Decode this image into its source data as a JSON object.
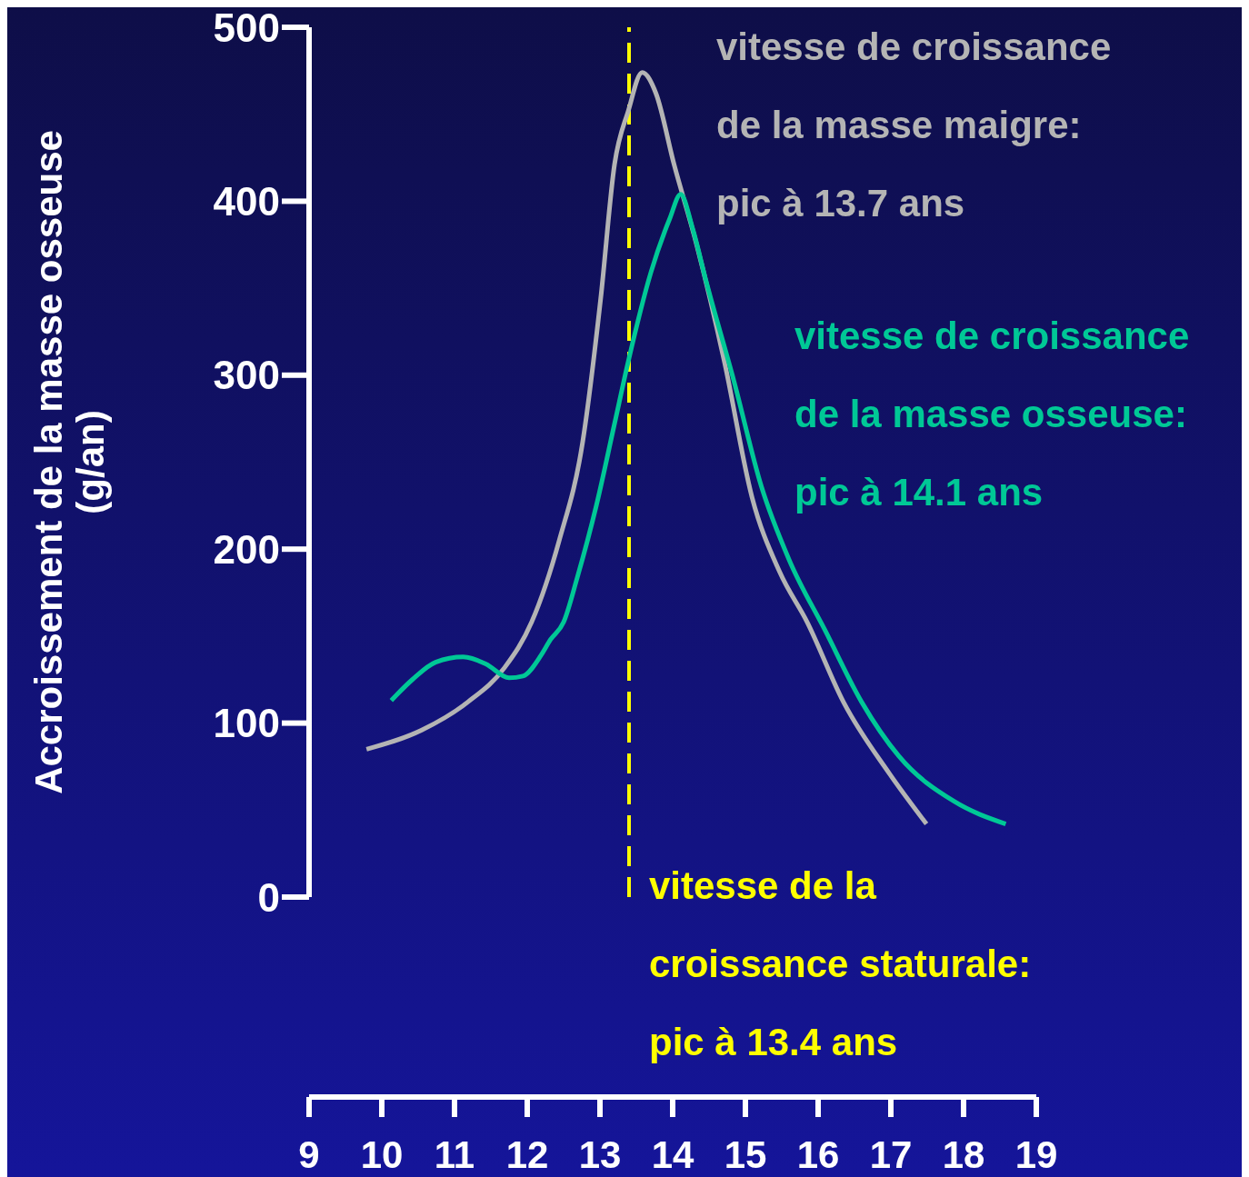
{
  "chart_data": {
    "type": "line",
    "ylabel": "Accroissement de la masse osseuse (g/an)",
    "xlim": [
      9,
      19
    ],
    "xticks": [
      9,
      10,
      11,
      12,
      13,
      14,
      15,
      16,
      17,
      18,
      19
    ],
    "ylim": [
      0,
      500
    ],
    "yticks": [
      0,
      100,
      200,
      300,
      400,
      500
    ],
    "grid": false,
    "marker": "none",
    "line_style": "solid",
    "series": [
      {
        "name": "vitesse de croissance de la masse maigre: pic à 13.7 ans",
        "color": "#b4b4b4",
        "x": [
          9.79,
          10.55,
          11.18,
          11.69,
          12.06,
          12.44,
          12.76,
          13.01,
          13.2,
          13.39,
          13.58,
          13.77,
          14.02,
          14.33,
          14.71,
          15.09,
          15.47,
          15.85,
          16.35,
          16.98,
          17.49
        ],
        "values": [
          85,
          96,
          112,
          132,
          158,
          205,
          261,
          344,
          421,
          452,
          474,
          462,
          421,
          375,
          308,
          230,
          187,
          158,
          112,
          71,
          42
        ]
      },
      {
        "name": "vitesse de croissance de la masse osseuse: pic à 14.1 ans",
        "color": "#00c896",
        "x": [
          10.13,
          10.42,
          10.74,
          11.12,
          11.43,
          11.75,
          11.94,
          12.19,
          12.32,
          12.5,
          12.69,
          12.95,
          13.2,
          13.39,
          13.7,
          13.96,
          14.11,
          14.27,
          14.46,
          14.84,
          15.22,
          15.6,
          16.1,
          16.6,
          17.11,
          17.87,
          18.58
        ],
        "values": [
          113,
          125,
          135,
          138,
          134,
          126,
          127,
          139,
          148,
          158,
          184,
          225,
          272,
          308,
          359,
          390,
          404,
          385,
          354,
          297,
          236,
          194,
          153,
          112,
          81,
          55,
          42
        ]
      }
    ],
    "ref_lines": [
      {
        "axis": "x",
        "value": 13.4,
        "label": "vitesse de la croissance staturale: pic à 13.4 ans",
        "color": "#ffff00",
        "line_style": "dashed"
      }
    ]
  }
}
